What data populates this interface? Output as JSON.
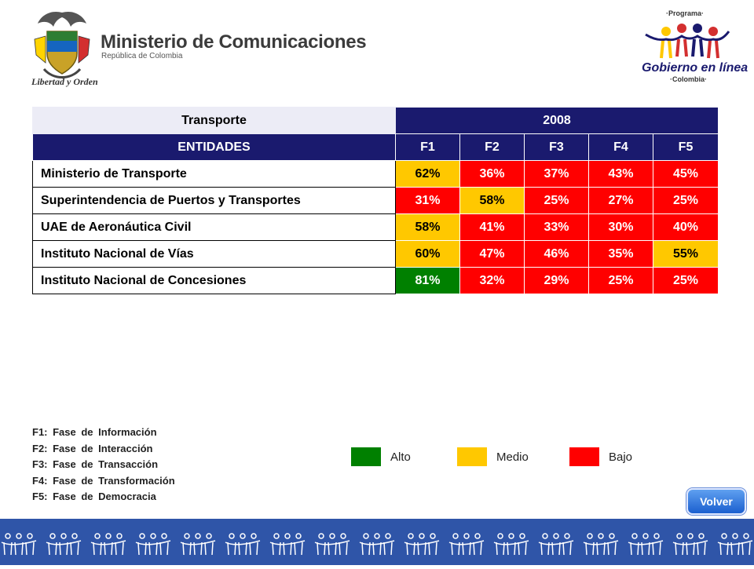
{
  "header": {
    "ministry_title": "Ministerio de Comunicaciones",
    "ministry_subtitle": "República de Colombia",
    "motto": "Libertad y Orden",
    "program_top": "·Programa·",
    "program_title": "Gobierno en línea",
    "program_country": "·Colombia·"
  },
  "table": {
    "sector": "Transporte",
    "year": "2008",
    "entities_header": "ENTIDADES",
    "columns": [
      "F1",
      "F2",
      "F3",
      "F4",
      "F5"
    ],
    "rows": [
      {
        "entity": "Ministerio de Transporte",
        "values": [
          "62%",
          "36%",
          "37%",
          "43%",
          "45%"
        ],
        "levels": [
          "medio",
          "bajo",
          "bajo",
          "bajo",
          "bajo"
        ]
      },
      {
        "entity": "Superintendencia de Puertos y Transportes",
        "values": [
          "31%",
          "58%",
          "25%",
          "27%",
          "25%"
        ],
        "levels": [
          "bajo",
          "medio",
          "bajo",
          "bajo",
          "bajo"
        ]
      },
      {
        "entity": "UAE de Aeronáutica Civil",
        "values": [
          "58%",
          "41%",
          "33%",
          "30%",
          "40%"
        ],
        "levels": [
          "medio",
          "bajo",
          "bajo",
          "bajo",
          "bajo"
        ]
      },
      {
        "entity": "Instituto Nacional de Vías",
        "values": [
          "60%",
          "47%",
          "46%",
          "35%",
          "55%"
        ],
        "levels": [
          "medio",
          "bajo",
          "bajo",
          "bajo",
          "medio"
        ]
      },
      {
        "entity": "Instituto Nacional de Concesiones",
        "values": [
          "81%",
          "32%",
          "29%",
          "25%",
          "25%"
        ],
        "levels": [
          "alto",
          "bajo",
          "bajo",
          "bajo",
          "bajo"
        ]
      }
    ]
  },
  "phases": [
    "F1: Fase de Información",
    "F2: Fase de Interacción",
    "F3: Fase de Transacción",
    "F4: Fase de Transformación",
    "F5: Fase de Democracia"
  ],
  "legend": [
    {
      "label": "Alto",
      "color": "#008000"
    },
    {
      "label": "Medio",
      "color": "#ffc800"
    },
    {
      "label": "Bajo",
      "color": "#ff0000"
    }
  ],
  "colors": {
    "header_navy": "#1a1a6e",
    "alto": "#008000",
    "medio": "#ffc800",
    "bajo": "#ff0000",
    "footer": "#2f55a8"
  },
  "icons": {
    "left_logo": "coat-of-arms-icon",
    "right_logo": "gobierno-en-linea-people-icon",
    "footer_pattern": "people-pattern-icon"
  },
  "volver_label": "Volver"
}
